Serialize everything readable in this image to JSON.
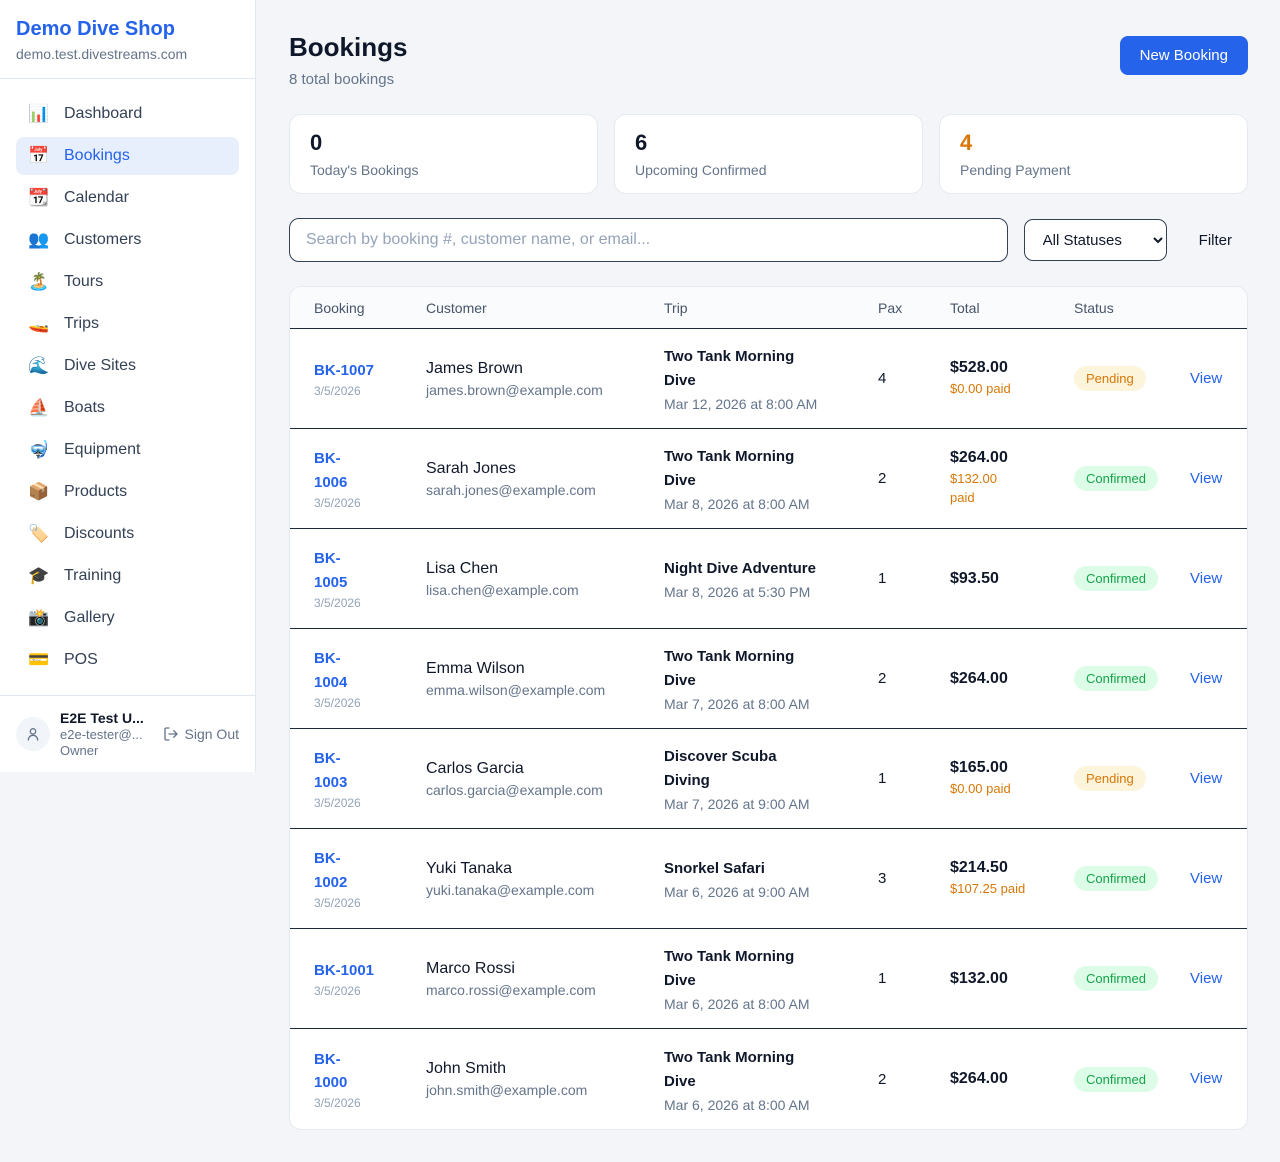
{
  "sidebar": {
    "brand": {
      "name": "Demo Dive Shop",
      "domain": "demo.test.divestreams.com"
    },
    "items": [
      {
        "icon": "bar-chart",
        "emoji": "📊",
        "label": "Dashboard",
        "active": false
      },
      {
        "icon": "calendar",
        "emoji": "📅",
        "label": "Bookings",
        "active": true
      },
      {
        "icon": "tear-calendar",
        "emoji": "📆",
        "label": "Calendar",
        "active": false
      },
      {
        "icon": "people",
        "emoji": "👥",
        "label": "Customers",
        "active": false
      },
      {
        "icon": "island",
        "emoji": "🏝️",
        "label": "Tours",
        "active": false
      },
      {
        "icon": "speedboat",
        "emoji": "🚤",
        "label": "Trips",
        "active": false
      },
      {
        "icon": "wave",
        "emoji": "🌊",
        "label": "Dive Sites",
        "active": false
      },
      {
        "icon": "sailboat",
        "emoji": "⛵",
        "label": "Boats",
        "active": false
      },
      {
        "icon": "diving-mask",
        "emoji": "🤿",
        "label": "Equipment",
        "active": false
      },
      {
        "icon": "package",
        "emoji": "📦",
        "label": "Products",
        "active": false
      },
      {
        "icon": "tag",
        "emoji": "🏷️",
        "label": "Discounts",
        "active": false
      },
      {
        "icon": "graduation-cap",
        "emoji": "🎓",
        "label": "Training",
        "active": false
      },
      {
        "icon": "camera",
        "emoji": "📸",
        "label": "Gallery",
        "active": false
      },
      {
        "icon": "credit-card",
        "emoji": "💳",
        "label": "POS",
        "active": false
      }
    ],
    "user": {
      "name": "E2E Test U...",
      "email": "e2e-tester@...",
      "role": "Owner",
      "sign_out_label": "Sign Out"
    }
  },
  "header": {
    "title": "Bookings",
    "subtitle": "8 total bookings",
    "new_booking_label": "New Booking"
  },
  "stats": [
    {
      "value": "0",
      "label": "Today's Bookings"
    },
    {
      "value": "6",
      "label": "Upcoming Confirmed"
    },
    {
      "value": "4",
      "label": "Pending Payment"
    }
  ],
  "controls": {
    "search_placeholder": "Search by booking #, customer name, or email...",
    "status_filter": "All Statuses",
    "filter_label": "Filter"
  },
  "table": {
    "headers": [
      "Booking",
      "Customer",
      "Trip",
      "Pax",
      "Total",
      "Status"
    ],
    "view_label": "View"
  },
  "bookings": [
    {
      "id": "BK-1007",
      "date": "3/5/2026",
      "customer": "James Brown",
      "email": "james.brown@example.com",
      "trip": "Two Tank Morning\nDive",
      "trip_datetime": "Mar 12, 2026 at 8:00 AM",
      "pax": "4",
      "total": "$528.00",
      "paid": "$0.00 paid",
      "status": "Pending"
    },
    {
      "id": "BK-\n1006",
      "date": "3/5/2026",
      "customer": "Sarah Jones",
      "email": "sarah.jones@example.com",
      "trip": "Two Tank Morning\nDive",
      "trip_datetime": "Mar 8, 2026 at 8:00 AM",
      "pax": "2",
      "total": "$264.00",
      "paid": "$132.00\npaid",
      "status": "Confirmed"
    },
    {
      "id": "BK-\n1005",
      "date": "3/5/2026",
      "customer": "Lisa Chen",
      "email": "lisa.chen@example.com",
      "trip": "Night Dive Adventure",
      "trip_datetime": "Mar 8, 2026 at 5:30 PM",
      "pax": "1",
      "total": "$93.50",
      "paid": null,
      "status": "Confirmed"
    },
    {
      "id": "BK-\n1004",
      "date": "3/5/2026",
      "customer": "Emma Wilson",
      "email": "emma.wilson@example.com",
      "trip": "Two Tank Morning\nDive",
      "trip_datetime": "Mar 7, 2026 at 8:00 AM",
      "pax": "2",
      "total": "$264.00",
      "paid": null,
      "status": "Confirmed"
    },
    {
      "id": "BK-\n1003",
      "date": "3/5/2026",
      "customer": "Carlos Garcia",
      "email": "carlos.garcia@example.com",
      "trip": "Discover Scuba\nDiving",
      "trip_datetime": "Mar 7, 2026 at 9:00 AM",
      "pax": "1",
      "total": "$165.00",
      "paid": "$0.00 paid",
      "status": "Pending"
    },
    {
      "id": "BK-\n1002",
      "date": "3/5/2026",
      "customer": "Yuki Tanaka",
      "email": "yuki.tanaka@example.com",
      "trip": "Snorkel Safari",
      "trip_datetime": "Mar 6, 2026 at 9:00 AM",
      "pax": "3",
      "total": "$214.50",
      "paid": "$107.25 paid",
      "status": "Confirmed"
    },
    {
      "id": "BK-1001",
      "date": "3/5/2026",
      "customer": "Marco Rossi",
      "email": "marco.rossi@example.com",
      "trip": "Two Tank Morning\nDive",
      "trip_datetime": "Mar 6, 2026 at 8:00 AM",
      "pax": "1",
      "total": "$132.00",
      "paid": null,
      "status": "Confirmed"
    },
    {
      "id": "BK-\n1000",
      "date": "3/5/2026",
      "customer": "John Smith",
      "email": "john.smith@example.com",
      "trip": "Two Tank Morning\nDive",
      "trip_datetime": "Mar 6, 2026 at 8:00 AM",
      "pax": "2",
      "total": "$264.00",
      "paid": null,
      "status": "Confirmed"
    }
  ],
  "colors": {
    "accent_blue": "#2563eb",
    "pending_text": "#d97706",
    "pending_bg": "#fdf4dc",
    "confirmed_text": "#16a34a",
    "confirmed_bg": "#dcfce7",
    "row_divider": "#1e293b",
    "page_bg": "#f3f5f9"
  }
}
